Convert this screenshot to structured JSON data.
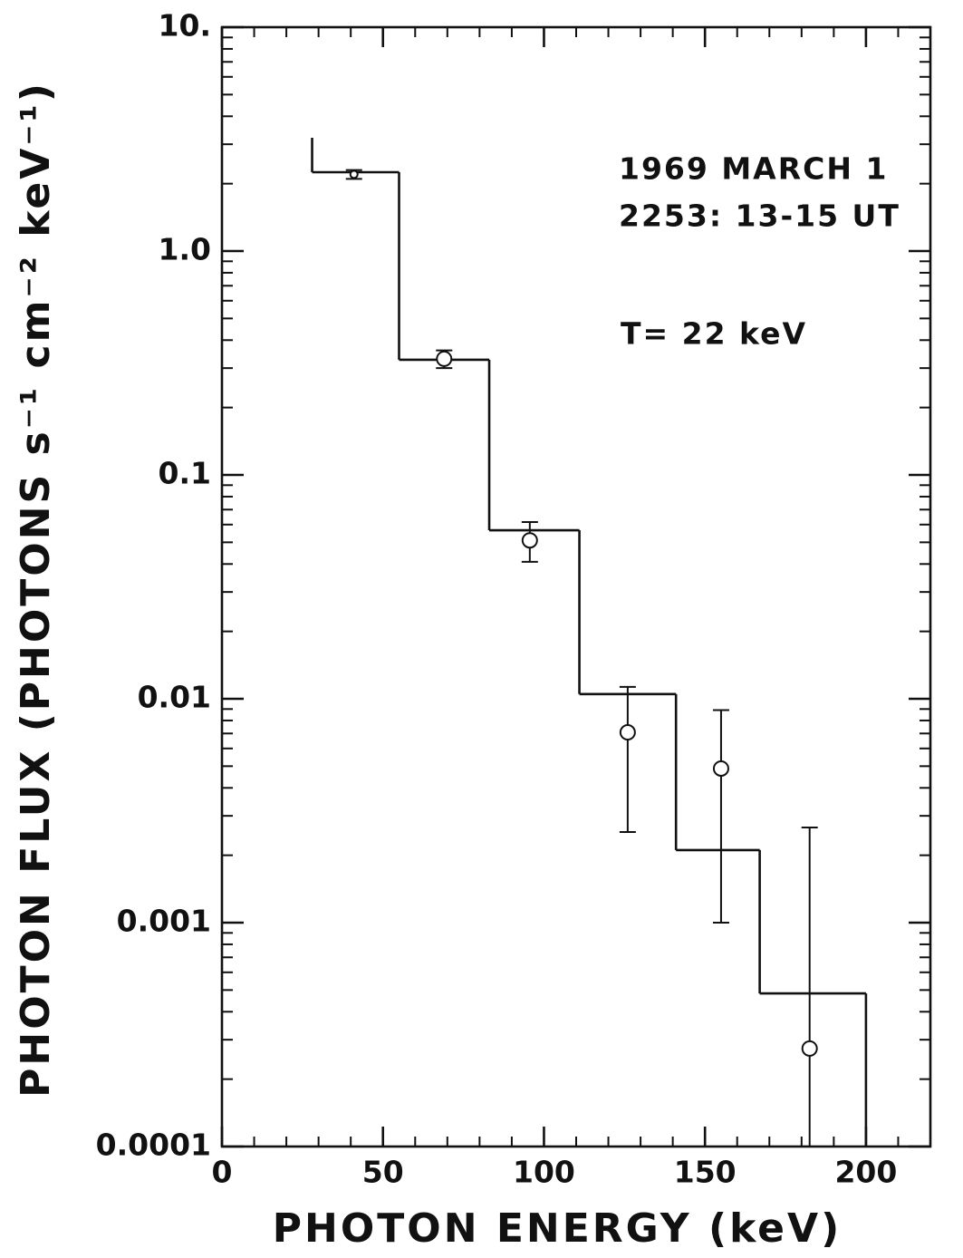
{
  "chart_data": {
    "type": "histogram",
    "xlabel": "PHOTON ENERGY (keV)",
    "ylabel": "PHOTON FLUX (PHOTONS s⁻¹ cm⁻² keV⁻¹)",
    "annotations": [
      "1969 MARCH 1",
      "2253: 13-15 UT",
      "T= 22 keV"
    ],
    "xlim": [
      0,
      220
    ],
    "xticks": [
      0,
      50,
      100,
      150,
      200
    ],
    "ylim": [
      0.0001,
      10
    ],
    "yticks": [
      0.0001,
      0.001,
      0.01,
      0.1,
      {
        "value": 1,
        "label": "1.0"
      },
      {
        "value": 10,
        "label": "10."
      }
    ],
    "log_y": true,
    "color": "#111111",
    "bins": [
      28,
      55,
      83,
      111,
      141,
      167,
      200
    ],
    "counts": [
      2.25,
      0.327,
      0.0566,
      0.0105,
      0.00211,
      0.000483
    ],
    "points": {
      "x": [
        41,
        69,
        95.6,
        126,
        155,
        182.5
      ],
      "values": [
        2.2,
        0.33,
        0.051,
        0.00708,
        0.00488,
        0.000274
      ],
      "lower": [
        2.1,
        0.3,
        0.0409,
        0.00254,
        0.001,
        0.0001
      ],
      "upper": [
        2.3,
        0.36,
        0.0616,
        0.0113,
        0.0089,
        0.00266
      ]
    }
  }
}
